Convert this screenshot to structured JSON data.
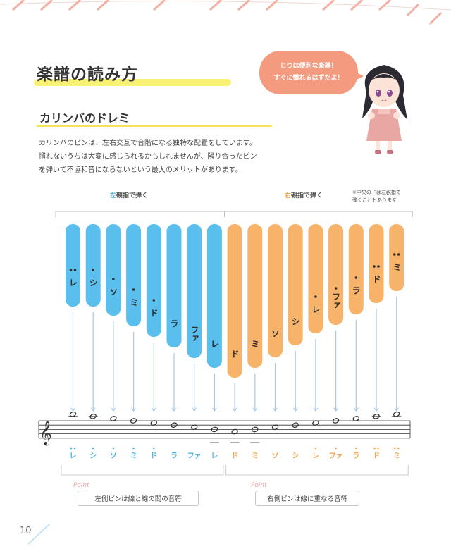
{
  "header": {
    "title": "楽譜の読み方",
    "subtitle": "カリンバのドレミ"
  },
  "intro_lines": [
    "カリンバのピンは、左右交互で音階になる独特な配置をしています。",
    "慣れないうちは大変に感じられるかもしれませんが、隣り合ったピン",
    "を弾いて不協和音にならないという最大のメリットがあります。"
  ],
  "speech_bubble": {
    "line1": "じつは便利な楽器！",
    "line2": "すぐに慣れるはずだよ！"
  },
  "hand_labels": {
    "left_lead": "左",
    "left_rest": "親指で弾く",
    "right_lead": "右",
    "right_rest": "親指で弾く",
    "note_line1": "※中央のドは左親指で",
    "note_line2": "弾くこともあります"
  },
  "tines": [
    {
      "label": "レ",
      "dots": 2,
      "side": "left"
    },
    {
      "label": "シ",
      "dots": 1,
      "side": "left"
    },
    {
      "label": "ソ",
      "dots": 1,
      "side": "left"
    },
    {
      "label": "ミ",
      "dots": 1,
      "side": "left"
    },
    {
      "label": "ド",
      "dots": 1,
      "side": "left"
    },
    {
      "label": "ラ",
      "dots": 0,
      "side": "left"
    },
    {
      "label": "ファ",
      "dots": 0,
      "side": "left"
    },
    {
      "label": "レ",
      "dots": 0,
      "side": "left"
    },
    {
      "label": "ド",
      "dots": 0,
      "side": "right"
    },
    {
      "label": "ミ",
      "dots": 0,
      "side": "right"
    },
    {
      "label": "ソ",
      "dots": 0,
      "side": "right"
    },
    {
      "label": "シ",
      "dots": 0,
      "side": "right"
    },
    {
      "label": "レ",
      "dots": 1,
      "side": "right"
    },
    {
      "label": "ファ",
      "dots": 1,
      "side": "right"
    },
    {
      "label": "ラ",
      "dots": 1,
      "side": "right"
    },
    {
      "label": "ド",
      "dots": 2,
      "side": "right"
    },
    {
      "label": "ミ",
      "dots": 2,
      "side": "right"
    }
  ],
  "staff_notes": [
    "レ",
    "シ",
    "ソ",
    "ミ",
    "ド",
    "ラ",
    "ファ",
    "レ",
    "ド",
    "ミ",
    "ソ",
    "シ",
    "レ",
    "ファ",
    "ラ",
    "ド",
    "ミ"
  ],
  "captions": {
    "point_label": "Point",
    "left_text": "左側ピンは線と線の間の音符",
    "right_text": "右側ピンは線に重なる音符"
  },
  "page_number": "10",
  "colors": {
    "left_tine": "#5bbfee",
    "right_tine": "#f7b36a",
    "stripe": "#f3b0a4",
    "bubble": "#f49a7e",
    "highlight": "#f7ef5a"
  }
}
